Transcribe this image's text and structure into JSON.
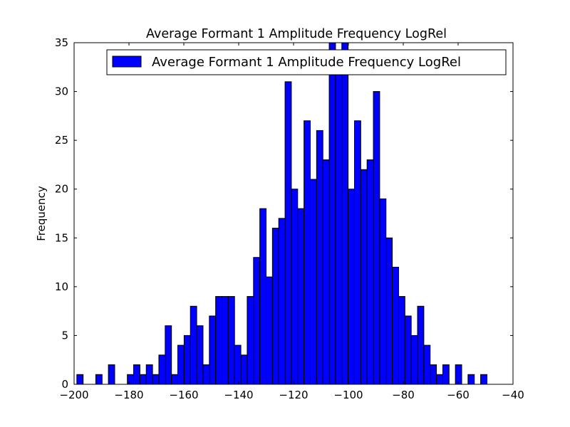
{
  "chart_data": {
    "type": "bar",
    "title": "Average Formant 1 Amplitude Frequency LogRel",
    "xlabel": "",
    "ylabel": "Frequency",
    "xlim": [
      -200,
      -40
    ],
    "ylim": [
      0,
      35
    ],
    "xticks": [
      -200,
      -180,
      -160,
      -140,
      -120,
      -100,
      -80,
      -60,
      -40
    ],
    "yticks": [
      0,
      5,
      10,
      15,
      20,
      25,
      30,
      35
    ],
    "xtick_labels": [
      "−200",
      "−180",
      "−160",
      "−140",
      "−120",
      "−100",
      "−80",
      "−60",
      "−40"
    ],
    "ytick_labels": [
      "0",
      "5",
      "10",
      "15",
      "20",
      "25",
      "30",
      "35"
    ],
    "grid": false,
    "legend_position": "top-right",
    "bar_color": "#0000ff",
    "edge_color": "#000000",
    "bin_start": -199.0,
    "bin_width": 2.3,
    "series": [
      {
        "name": "Average Formant 1 Amplitude Frequency LogRel",
        "values": [
          1,
          0,
          0,
          1,
          0,
          2,
          0,
          0,
          1,
          2,
          1,
          2,
          1,
          3,
          6,
          1,
          4,
          5,
          8,
          6,
          2,
          7,
          9,
          9,
          9,
          4,
          3,
          9,
          13,
          18,
          11,
          16,
          17,
          31,
          20,
          18,
          27,
          21,
          26,
          23,
          35,
          32,
          35,
          20,
          27,
          22,
          23,
          30,
          19,
          15,
          12,
          9,
          7,
          5,
          8,
          4,
          2,
          1,
          2,
          0,
          2,
          0,
          1,
          0,
          1
        ]
      }
    ]
  }
}
